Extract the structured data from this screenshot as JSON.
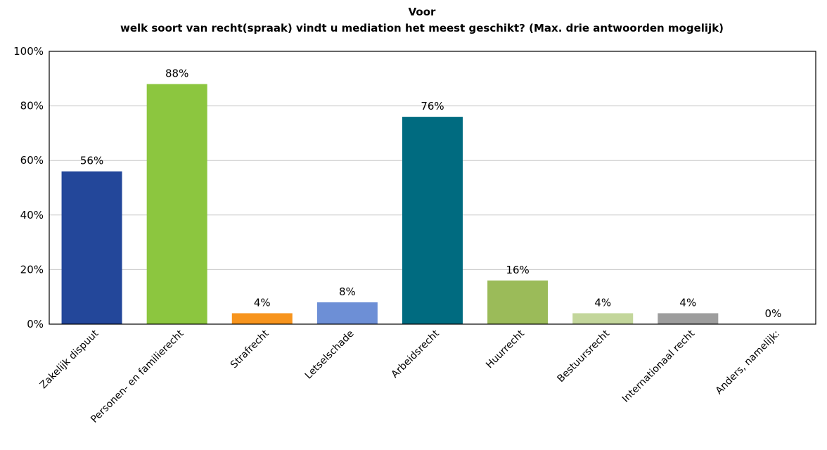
{
  "chart_data": {
    "type": "bar",
    "title_line1": "Voor",
    "title_line2": "welk soort van recht(spraak) vindt u mediation het meest geschikt? (Max. drie antwoorden mogelijk)",
    "ylim": [
      0,
      100
    ],
    "yticks": [
      "0%",
      "20%",
      "40%",
      "60%",
      "80%",
      "100%"
    ],
    "ytick_values": [
      0,
      20,
      40,
      60,
      80,
      100
    ],
    "grid": true,
    "categories": [
      "Zakelijk dispuut",
      "Personen- en familierecht",
      "Strafrecht",
      "Letselschade",
      "Arbeidsrecht",
      "Huurrecht",
      "Bestuursrecht",
      "Internationaal recht",
      "Anders, namelijk:"
    ],
    "values": [
      56,
      88,
      4,
      8,
      76,
      16,
      4,
      4,
      0
    ],
    "data_labels": [
      "56%",
      "88%",
      "4%",
      "8%",
      "76%",
      "16%",
      "4%",
      "4%",
      "0%"
    ],
    "colors": [
      "#23479a",
      "#8cc63f",
      "#f7941d",
      "#6d8fd6",
      "#006b80",
      "#9bbb59",
      "#c3d69b",
      "#9d9d9d",
      "#cccccc"
    ]
  }
}
